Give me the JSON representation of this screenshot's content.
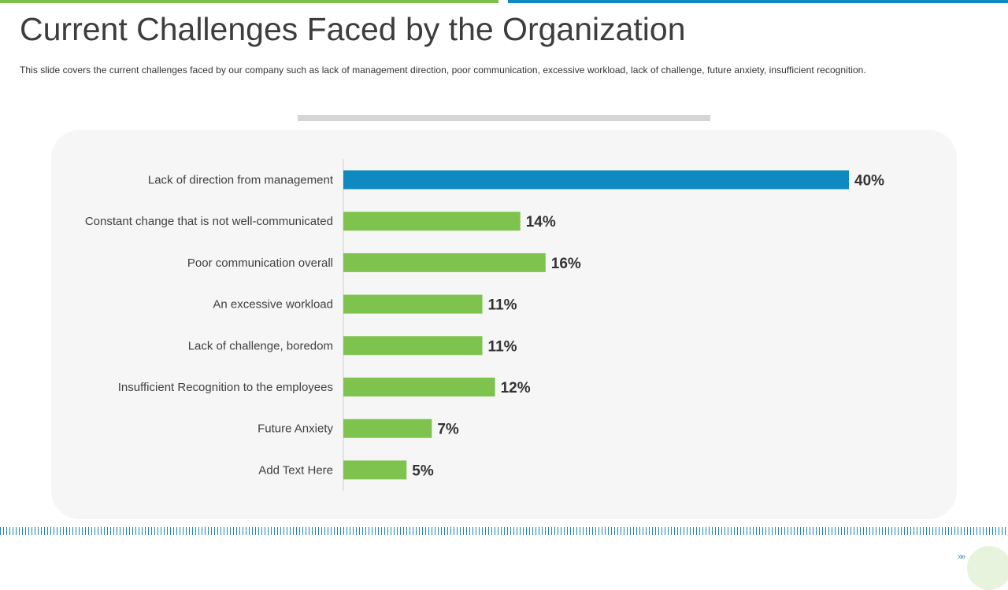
{
  "slide": {
    "title": "Current Challenges Faced by the Organization",
    "subtitle": "This slide covers the current challenges faced by our company such as lack of management direction, poor communication, excessive workload, lack of challenge, future anxiety, insufficient recognition.",
    "nav_arrows": "»»"
  },
  "colors": {
    "highlight": "#0f8ac0",
    "bar": "#7fc34f",
    "accent_green": "#7fbf4d"
  },
  "chart_data": {
    "type": "bar",
    "orientation": "horizontal",
    "title": "",
    "xlabel": "",
    "ylabel": "",
    "xlim": [
      0,
      40
    ],
    "grid": false,
    "legend": "none",
    "categories": [
      "Lack of direction from management",
      "Constant change that is not well-communicated",
      "Poor communication overall",
      "An excessive workload",
      "Lack of challenge, boredom",
      "Insufficient Recognition to the employees",
      "Future Anxiety",
      "Add Text Here"
    ],
    "values": [
      40,
      14,
      16,
      11,
      11,
      12,
      7,
      5
    ],
    "value_labels": [
      "40%",
      "14%",
      "16%",
      "11%",
      "11%",
      "12%",
      "7%",
      "5%"
    ],
    "highlighted_index": 0
  }
}
